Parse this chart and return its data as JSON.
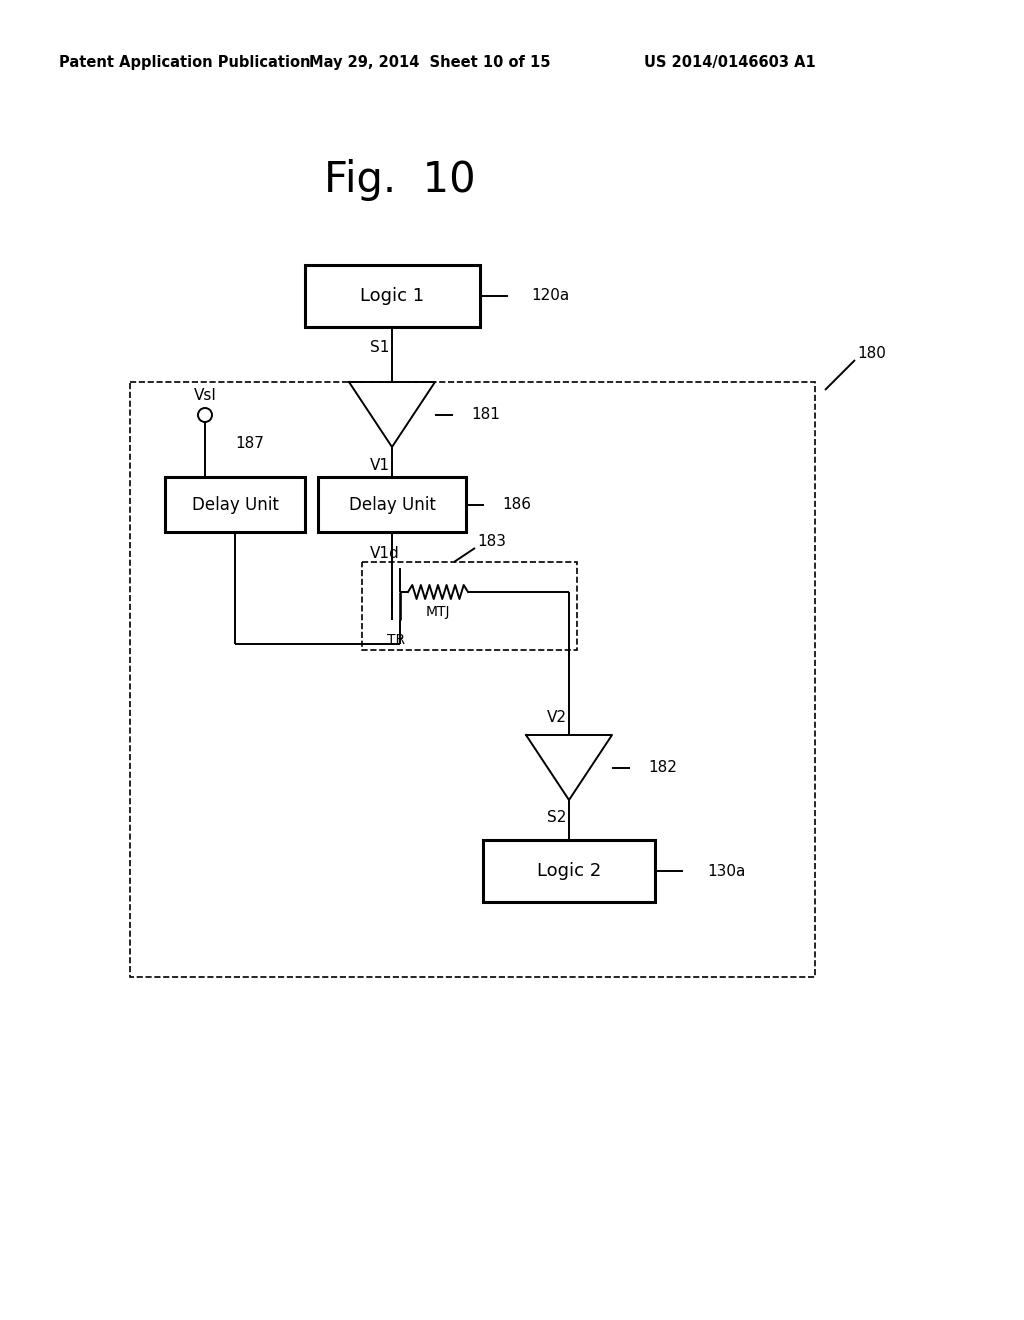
{
  "bg_color": "#ffffff",
  "header_left": "Patent Application Publication",
  "header_mid": "May 29, 2014  Sheet 10 of 15",
  "header_right": "US 2014/0146603 A1",
  "fig_title": "Fig.  10",
  "logic1_label": "Logic 1",
  "logic1_ref": "120a",
  "logic2_label": "Logic 2",
  "logic2_ref": "130a",
  "delay1_label": "Delay Unit",
  "delay1_ref": "187",
  "delay2_label": "Delay Unit",
  "delay2_ref": "186",
  "buf1_ref": "181",
  "buf2_ref": "182",
  "cell_ref": "183",
  "tr_label": "TR",
  "mtj_label": "MTJ",
  "box180_ref": "180",
  "vsi_label": "VsI",
  "s1_label": "S1",
  "v1_label": "V1",
  "v1d_label": "V1d",
  "v2_label": "V2",
  "s2_label": "S2"
}
